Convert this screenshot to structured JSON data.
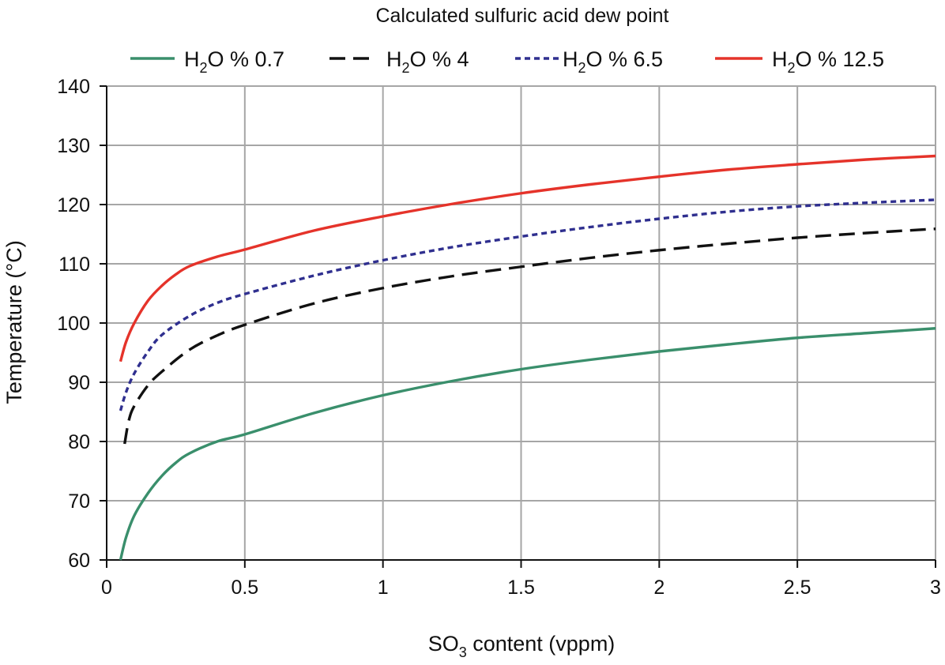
{
  "chart_data": {
    "type": "line",
    "title": "Calculated sulfuric acid dew point",
    "xlabel": {
      "prefix": "SO",
      "sub": "3",
      "suffix": " content (vppm)"
    },
    "ylabel": "Temperature (°C)",
    "xlim": [
      0,
      3
    ],
    "ylim": [
      60,
      140
    ],
    "xticks": [
      0,
      0.5,
      1,
      1.5,
      2,
      2.5,
      3
    ],
    "xtick_labels": [
      "0",
      "0.5",
      "1",
      "1.5",
      "2",
      "2.5",
      "3"
    ],
    "yticks": [
      60,
      70,
      80,
      90,
      100,
      110,
      120,
      130,
      140
    ],
    "ytick_labels": [
      "60",
      "70",
      "80",
      "90",
      "100",
      "110",
      "120",
      "130",
      "140"
    ],
    "grid": true,
    "legend_position": "top",
    "series": [
      {
        "legend": {
          "prefix": "H",
          "sub": "2",
          "suffix": "O % 0.7"
        },
        "color": "#3a8f6c",
        "dash": "solid",
        "x": [
          0.05,
          0.07,
          0.1,
          0.15,
          0.2,
          0.25,
          0.3,
          0.4,
          0.5,
          0.75,
          1,
          1.25,
          1.5,
          1.75,
          2,
          2.25,
          2.5,
          2.75,
          3
        ],
        "y": [
          60,
          63.8,
          67.5,
          71.3,
          74.2,
          76.4,
          78,
          80,
          81.2,
          84.8,
          87.8,
          90.2,
          92.2,
          93.8,
          95.2,
          96.4,
          97.5,
          98.3,
          99.1
        ]
      },
      {
        "legend": {
          "prefix": "H",
          "sub": "2",
          "suffix": "O % 4"
        },
        "color": "#111111",
        "dash": "long-dash",
        "x": [
          0.065,
          0.08,
          0.1,
          0.15,
          0.2,
          0.3,
          0.4,
          0.5,
          0.75,
          1,
          1.25,
          1.5,
          1.75,
          2,
          2.25,
          2.5,
          2.75,
          3
        ],
        "y": [
          79.6,
          83.5,
          86,
          89.5,
          91.8,
          95.5,
          97.9,
          99.7,
          103.3,
          105.9,
          107.9,
          109.5,
          111,
          112.3,
          113.4,
          114.4,
          115.2,
          115.9
        ]
      },
      {
        "legend": {
          "prefix": "H",
          "sub": "2",
          "suffix": "O % 6.5"
        },
        "color": "#2f2f8f",
        "dash": "short-dash",
        "x": [
          0.05,
          0.07,
          0.1,
          0.15,
          0.2,
          0.3,
          0.4,
          0.5,
          0.75,
          1,
          1.25,
          1.5,
          1.75,
          2,
          2.25,
          2.5,
          2.75,
          3
        ],
        "y": [
          85.2,
          88.3,
          91.5,
          95.2,
          98,
          101.2,
          103.4,
          104.9,
          108,
          110.6,
          112.8,
          114.6,
          116.2,
          117.6,
          118.8,
          119.7,
          120.3,
          120.8
        ]
      },
      {
        "legend": {
          "prefix": "H",
          "sub": "2",
          "suffix": "O % 12.5"
        },
        "color": "#e5332a",
        "dash": "solid",
        "x": [
          0.05,
          0.07,
          0.1,
          0.15,
          0.2,
          0.25,
          0.3,
          0.4,
          0.5,
          0.75,
          1,
          1.25,
          1.5,
          1.75,
          2,
          2.25,
          2.5,
          2.75,
          3
        ],
        "y": [
          93.5,
          96.8,
          100,
          103.8,
          106.3,
          108.2,
          109.6,
          111.2,
          112.4,
          115.6,
          118,
          120.1,
          121.9,
          123.4,
          124.7,
          125.9,
          126.8,
          127.6,
          128.2
        ]
      }
    ]
  }
}
